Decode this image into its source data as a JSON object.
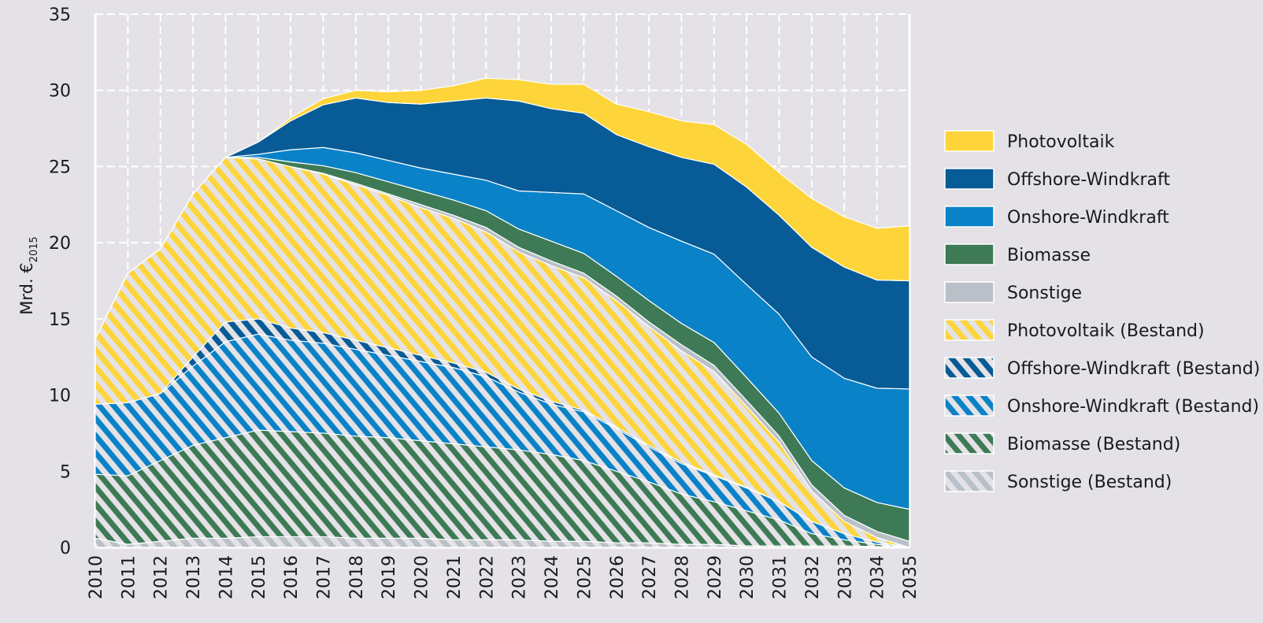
{
  "chart_data": {
    "type": "area",
    "stacked": true,
    "ylabel": {
      "main": "Mrd. €",
      "subscript": "2015"
    },
    "ylim": [
      0,
      35
    ],
    "yticks": [
      0,
      5,
      10,
      15,
      20,
      25,
      30,
      35
    ],
    "x": [
      "2010",
      "2011",
      "2012",
      "2013",
      "2014",
      "2015",
      "2016",
      "2017",
      "2018",
      "2019",
      "2020",
      "2021",
      "2022",
      "2023",
      "2024",
      "2025",
      "2026",
      "2027",
      "2028",
      "2029",
      "2030",
      "2031",
      "2032",
      "2033",
      "2034",
      "2035"
    ],
    "grid": true,
    "legend_position": "right",
    "series": [
      {
        "name": "Sonstige (Bestand)",
        "color": "#b9c0c8",
        "hatched": true,
        "values": [
          0.6,
          0.2,
          0.4,
          0.6,
          0.6,
          0.7,
          0.7,
          0.7,
          0.6,
          0.6,
          0.6,
          0.5,
          0.5,
          0.5,
          0.4,
          0.4,
          0.3,
          0.3,
          0.2,
          0.2,
          0.1,
          0.1,
          0.1,
          0.1,
          0.05,
          0
        ]
      },
      {
        "name": "Biomasse (Bestand)",
        "color": "#3d7a55",
        "hatched": true,
        "values": [
          4.2,
          4.5,
          5.3,
          6.1,
          6.6,
          7.0,
          6.9,
          6.8,
          6.7,
          6.6,
          6.4,
          6.3,
          6.1,
          5.9,
          5.7,
          5.3,
          4.7,
          4.0,
          3.3,
          2.8,
          2.3,
          1.7,
          0.8,
          0.4,
          0.15,
          0
        ]
      },
      {
        "name": "Onshore-Windkraft (Bestand)",
        "color": "#0a82c8",
        "hatched": true,
        "values": [
          4.6,
          4.8,
          4.4,
          5.2,
          6.3,
          6.3,
          6.0,
          5.9,
          5.7,
          5.4,
          5.2,
          5.0,
          4.6,
          3.8,
          3.3,
          3.2,
          2.8,
          2.3,
          2.0,
          1.7,
          1.5,
          1.2,
          0.8,
          0.4,
          0.15,
          0
        ]
      },
      {
        "name": "Offshore-Windkraft (Bestand)",
        "color": "#075b96",
        "hatched": true,
        "values": [
          0,
          0,
          0,
          0.6,
          1.3,
          1.0,
          0.8,
          0.7,
          0.6,
          0.5,
          0.4,
          0.3,
          0.3,
          0.2,
          0.2,
          0.1,
          0.1,
          0.1,
          0.1,
          0.05,
          0.05,
          0,
          0,
          0,
          0,
          0
        ]
      },
      {
        "name": "Photovoltaik (Bestand)",
        "color": "#fdd53a",
        "hatched": true,
        "values": [
          4.3,
          8.5,
          9.5,
          10.7,
          10.8,
          10.5,
          10.6,
          10.4,
          10.2,
          10.0,
          9.7,
          9.5,
          9.2,
          9.0,
          8.9,
          8.7,
          8.3,
          7.8,
          7.3,
          6.8,
          5.3,
          3.9,
          2.0,
          0.8,
          0.3,
          0
        ]
      },
      {
        "name": "Sonstige",
        "color": "#b9c0c8",
        "hatched": false,
        "values": [
          0,
          0,
          0,
          0,
          0,
          0,
          0,
          0.05,
          0.1,
          0.1,
          0.2,
          0.2,
          0.3,
          0.3,
          0.3,
          0.3,
          0.3,
          0.3,
          0.4,
          0.4,
          0.4,
          0.4,
          0.4,
          0.4,
          0.4,
          0.4
        ]
      },
      {
        "name": "Biomasse",
        "color": "#3d7a55",
        "hatched": false,
        "values": [
          0,
          0,
          0,
          0,
          0,
          0.1,
          0.3,
          0.5,
          0.7,
          0.8,
          0.9,
          1.0,
          1.1,
          1.2,
          1.3,
          1.3,
          1.3,
          1.4,
          1.4,
          1.5,
          1.5,
          1.5,
          1.6,
          1.8,
          1.9,
          2.1
        ]
      },
      {
        "name": "Onshore-Windkraft",
        "color": "#0a82c8",
        "hatched": false,
        "values": [
          0,
          0,
          0,
          0,
          0,
          0.2,
          0.8,
          1.2,
          1.3,
          1.4,
          1.5,
          1.7,
          2.0,
          2.5,
          3.2,
          3.9,
          4.3,
          4.8,
          5.4,
          5.8,
          6.1,
          6.5,
          6.8,
          7.2,
          7.5,
          7.9
        ]
      },
      {
        "name": "Offshore-Windkraft",
        "color": "#075b96",
        "hatched": false,
        "values": [
          0,
          0,
          0,
          0,
          0,
          0.8,
          1.9,
          2.8,
          3.6,
          3.8,
          4.2,
          4.8,
          5.4,
          5.9,
          5.5,
          5.3,
          5.0,
          5.3,
          5.5,
          5.9,
          6.4,
          6.5,
          7.2,
          7.3,
          7.1,
          7.1
        ]
      },
      {
        "name": "Photovoltaik",
        "color": "#fdd53a",
        "hatched": false,
        "values": [
          0,
          0,
          0,
          0,
          0,
          0,
          0.2,
          0.4,
          0.5,
          0.7,
          0.9,
          1.0,
          1.3,
          1.4,
          1.6,
          1.9,
          2.0,
          2.3,
          2.4,
          2.6,
          2.8,
          2.8,
          3.2,
          3.3,
          3.4,
          3.6
        ]
      }
    ],
    "legend_order": [
      "Photovoltaik",
      "Offshore-Windkraft",
      "Onshore-Windkraft",
      "Biomasse",
      "Sonstige",
      "Photovoltaik (Bestand)",
      "Offshore-Windkraft (Bestand)",
      "Onshore-Windkraft (Bestand)",
      "Biomasse (Bestand)",
      "Sonstige (Bestand)"
    ]
  }
}
